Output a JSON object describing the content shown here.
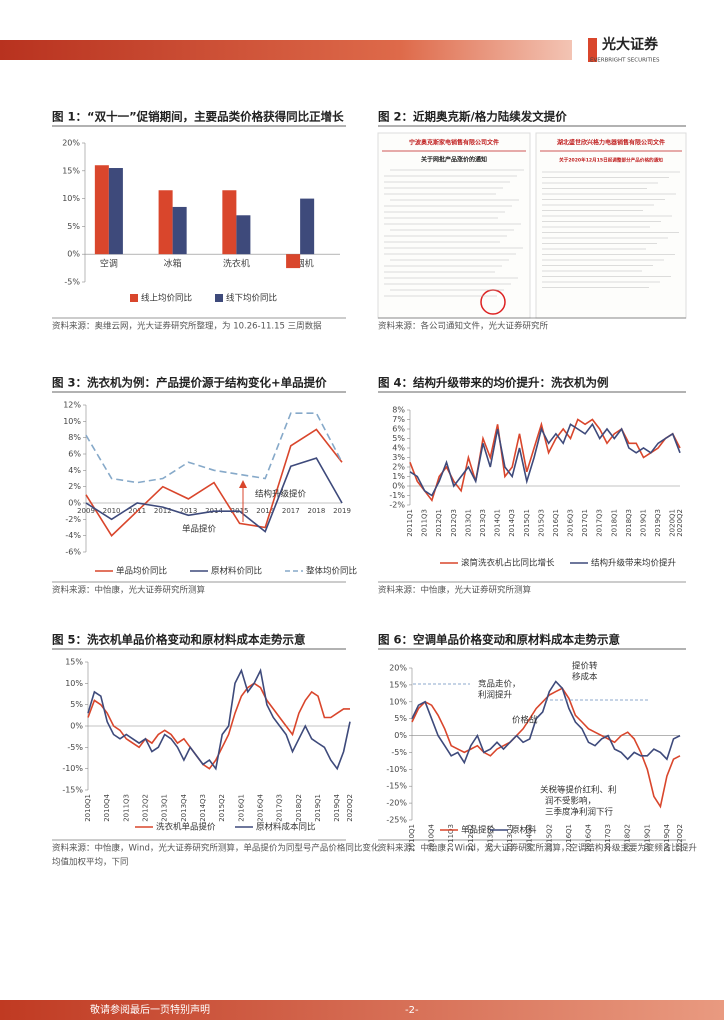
{
  "header": {
    "logo": "光大证券",
    "logo_en": "EVERBRIGHT SECURITIES"
  },
  "figures": [
    {
      "title": "图 1：“双十一”促销期间，主要品类价格获得同比正增长",
      "source": "资料来源：奥维云网，光大证券研究所整理，为 10.26-11.15 三周数据",
      "chart": {
        "type": "bar",
        "categories": [
          "空调",
          "冰箱",
          "洗衣机",
          "油烟机"
        ],
        "series": [
          {
            "name": "线上均价同比",
            "color": "#d9462c",
            "values": [
              16,
              11.5,
              11.5,
              -2.5
            ]
          },
          {
            "name": "线下均价同比",
            "color": "#3e4a7b",
            "values": [
              15.5,
              8.5,
              7,
              10
            ]
          }
        ],
        "ylim": [
          -5,
          20
        ],
        "yticks": [
          {
            "value": -5,
            "label": "-5%"
          },
          {
            "value": 0,
            "label": "0%"
          },
          {
            "value": 5,
            "label": "5%"
          },
          {
            "value": 10,
            "label": "10%"
          },
          {
            "value": 15,
            "label": "15%"
          },
          {
            "value": 20,
            "label": "20%"
          }
        ]
      }
    },
    {
      "title": "图 2：近期奥克斯/格力陆续发文提价",
      "source": "资料来源：各公司通知文件，光大证券研究所",
      "documents": [
        {
          "company": "宁波奥克斯家电销售有限公司文件",
          "heading": "关于网批产品涨价的通知"
        },
        {
          "company": "湖北盛世欣兴格力电器销售有限公司文件",
          "heading": "关于2020年12月15日起调整部分产品价格的通知"
        }
      ]
    },
    {
      "title": "图 3：洗衣机为例：产品提价源于结构变化+单品提价",
      "source": "资料来源：中怡康，光大证券研究所测算",
      "chart": {
        "type": "line",
        "categories": [
          "2009",
          "2010",
          "2011",
          "2012",
          "2013",
          "2014",
          "2015",
          "2016",
          "2017",
          "2018",
          "2019"
        ],
        "series": [
          {
            "name": "单品均价同比",
            "color": "#d9462c",
            "values": [
              1,
              -4,
              -1,
              2,
              0.5,
              2.5,
              -2.5,
              -3,
              7,
              9,
              5
            ]
          },
          {
            "name": "原材料价同比",
            "color": "#3e4a7b",
            "values": [
              0,
              -2,
              0,
              -0.5,
              -1.5,
              -1,
              -1,
              -3.5,
              4.5,
              5.5,
              0
            ]
          },
          {
            "name": "整体均价同比",
            "color": "#86a9c9",
            "line_style": "dashed",
            "values": [
              8.3,
              3,
              2.5,
              3,
              5,
              4,
              3.5,
              3,
              11,
              11,
              5
            ]
          }
        ],
        "ylim": [
          -6,
          12
        ],
        "yticks": [
          {
            "value": -6,
            "label": "-6%"
          },
          {
            "value": -4,
            "label": "-4%"
          },
          {
            "value": -2,
            "label": "-2%"
          },
          {
            "value": 0,
            "label": "0%"
          },
          {
            "value": 2,
            "label": "2%"
          },
          {
            "value": 4,
            "label": "4%"
          },
          {
            "value": 6,
            "label": "6%"
          },
          {
            "value": 8,
            "label": "8%"
          },
          {
            "value": 10,
            "label": "10%"
          },
          {
            "value": 12,
            "label": "12%"
          }
        ],
        "annotations": [
          "结构升级提价",
          "单品提价"
        ]
      }
    },
    {
      "title": "图 4：结构升级带来的均价提升：洗衣机为例",
      "source": "资料来源：中怡康，光大证券研究所测算",
      "chart": {
        "type": "line",
        "categories": [
          "2011Q1",
          null,
          "2011Q3",
          null,
          "2012Q1",
          null,
          "2012Q3",
          null,
          "2013Q1",
          null,
          "2013Q3",
          null,
          "2014Q1",
          null,
          "2014Q3",
          null,
          "2015Q1",
          null,
          "2015Q3",
          null,
          "2016Q1",
          null,
          "2016Q3",
          null,
          "2017Q1",
          null,
          "2017Q3",
          null,
          "2018Q1",
          null,
          "2018Q3",
          null,
          "2019Q1",
          null,
          "2019Q3",
          null,
          "2020Q1",
          "2020Q2"
        ],
        "series": [
          {
            "name": "滚筒洗衣机占比同比增长",
            "color": "#d9462c",
            "values": [
              2.5,
              0.5,
              -0.5,
              -1.5,
              1,
              2,
              0.5,
              -0.5,
              3,
              0.5,
              5,
              3,
              6.5,
              1,
              2,
              5.5,
              1.5,
              4,
              6.5,
              3.5,
              5,
              6,
              5,
              7,
              6.5,
              7,
              6,
              4.5,
              5.5,
              6,
              4.5,
              4.5,
              3,
              3.5,
              4,
              5,
              5.5,
              4
            ]
          },
          {
            "name": "结构升级带来均价提升",
            "color": "#3e4a7b",
            "values": [
              1.5,
              1,
              -0.5,
              -1,
              0.5,
              2.5,
              0,
              1,
              2,
              0.5,
              4.5,
              2,
              6,
              2,
              1,
              4,
              0.5,
              3,
              6,
              4.5,
              5.5,
              4.5,
              6.5,
              6,
              5.5,
              6.5,
              5,
              6,
              5,
              6,
              4,
              3.5,
              4,
              3.5,
              4.5,
              5,
              5.5,
              3.5
            ]
          }
        ],
        "ylim": [
          -2,
          8
        ],
        "yticks": [
          {
            "value": -2,
            "label": "-2%"
          },
          {
            "value": -1,
            "label": "-1%"
          },
          {
            "value": 0,
            "label": "0%"
          },
          {
            "value": 1,
            "label": "1%"
          },
          {
            "value": 2,
            "label": "2%"
          },
          {
            "value": 3,
            "label": "3%"
          },
          {
            "value": 4,
            "label": "4%"
          },
          {
            "value": 5,
            "label": "5%"
          },
          {
            "value": 6,
            "label": "6%"
          },
          {
            "value": 7,
            "label": "7%"
          },
          {
            "value": 8,
            "label": "8%"
          }
        ]
      }
    },
    {
      "title": "图 5：洗衣机单品价格变动和原材料成本走势示意",
      "source": "资料来源：中怡康，Wind，光大证券研究所测算，单品提价为同型号产品价格同比变化",
      "source2": "均值加权平均，下同",
      "chart": {
        "type": "line",
        "categories": [
          "2010Q1",
          null,
          null,
          "2010Q4",
          null,
          null,
          "2011Q3",
          null,
          null,
          "2012Q2",
          null,
          null,
          "2013Q1",
          null,
          null,
          "2013Q4",
          null,
          null,
          "2014Q3",
          null,
          null,
          "2015Q2",
          null,
          null,
          "2016Q1",
          null,
          null,
          "2016Q4",
          null,
          null,
          "2017Q3",
          null,
          null,
          "2018Q2",
          null,
          null,
          "2019Q1",
          null,
          null,
          "2019Q4",
          null,
          "2020Q2"
        ],
        "series": [
          {
            "name": "洗衣机单品提价",
            "color": "#d9462c",
            "values": [
              2,
              6,
              5,
              3,
              0,
              -1,
              -3,
              -4,
              -5,
              -3,
              -4,
              -2,
              -1,
              -2,
              -4,
              -3,
              -5,
              -7,
              -9,
              -10,
              -8,
              -5,
              -2,
              3,
              7,
              9,
              10,
              9,
              6,
              4,
              2,
              0,
              -2,
              3,
              6,
              8,
              7,
              2,
              2,
              3,
              4,
              4
            ]
          },
          {
            "name": "原材料成本同比",
            "color": "#3e4a7b",
            "values": [
              3,
              8,
              7,
              1,
              -2,
              -3,
              -2,
              -3,
              -4,
              -3,
              -6,
              -5,
              -2,
              -3,
              -5,
              -8,
              -5,
              -7,
              -9,
              -8,
              -10,
              -2,
              0,
              10,
              13,
              8,
              10,
              13,
              5,
              2,
              0,
              -2,
              -6,
              -3,
              0,
              -3,
              -4,
              -5,
              -8,
              -10,
              -6,
              1
            ]
          }
        ],
        "ylim": [
          -15,
          15
        ],
        "yticks": [
          {
            "value": -15,
            "label": "-15%"
          },
          {
            "value": -10,
            "label": "-10%"
          },
          {
            "value": -5,
            "label": "-5%"
          },
          {
            "value": 0,
            "label": "0%"
          },
          {
            "value": 5,
            "label": "5%"
          },
          {
            "value": 10,
            "label": "10%"
          },
          {
            "value": 15,
            "label": "15%"
          }
        ]
      }
    },
    {
      "title": "图 6：空调单品价格变动和原材料成本走势示意",
      "source": "资料来源：中怡康，Wind，光大证券研究所测算，空调结构升级主要为变频占比提升",
      "chart": {
        "type": "line",
        "categories": [
          "2010Q1",
          null,
          null,
          "2010Q4",
          null,
          null,
          "2011Q3",
          null,
          null,
          "2012Q2",
          null,
          null,
          "2013Q1",
          null,
          null,
          "2013Q4",
          null,
          null,
          "2014Q3",
          null,
          null,
          "2015Q2",
          null,
          null,
          "2016Q1",
          null,
          null,
          "2016Q4",
          null,
          null,
          "2017Q3",
          null,
          null,
          "2018Q2",
          null,
          null,
          "2019Q1",
          null,
          null,
          "2019Q4",
          null,
          "2020Q2"
        ],
        "series": [
          {
            "name": "单品提价",
            "color": "#d9462c",
            "values": [
              4,
              8,
              10,
              9,
              6,
              2,
              -3,
              -4,
              -5,
              -4,
              -3,
              -5,
              -6,
              -4,
              -3,
              -2,
              0,
              2,
              5,
              8,
              10,
              12,
              13,
              14,
              11,
              6,
              4,
              2,
              1,
              0,
              -1,
              -2,
              0,
              1,
              -1,
              -5,
              -10,
              -18,
              -21,
              -12,
              -7,
              -6
            ]
          },
          {
            "name": "原材料",
            "color": "#3e4a7b",
            "values": [
              5,
              9,
              10,
              5,
              0,
              -3,
              -6,
              -5,
              -8,
              -3,
              0,
              -5,
              -4,
              -2,
              -4,
              -2,
              0,
              -2,
              -1,
              5,
              7,
              13,
              16,
              14,
              8,
              4,
              2,
              -2,
              -3,
              -1,
              0,
              -4,
              -5,
              -7,
              -5,
              -6,
              -6,
              -4,
              -5,
              -7,
              -1,
              0
            ]
          }
        ],
        "ylim": [
          -25,
          20
        ],
        "yticks": [
          {
            "value": -25,
            "label": "-25%"
          },
          {
            "value": -20,
            "label": "-20%"
          },
          {
            "value": -15,
            "label": "-15%"
          },
          {
            "value": -10,
            "label": "-10%"
          },
          {
            "value": -5,
            "label": "-5%"
          },
          {
            "value": 0,
            "label": "0%"
          },
          {
            "value": 5,
            "label": "5%"
          },
          {
            "value": 10,
            "label": "10%"
          },
          {
            "value": 15,
            "label": "15%"
          },
          {
            "value": 20,
            "label": "20%"
          }
        ],
        "annotations": [
          "竞品走价，",
          "利润提升",
          "提价转",
          "移成本",
          "价格战",
          "关税等提价红利、利",
          "润不受影响，",
          "三季度净利润下行"
        ]
      }
    }
  ],
  "footer": {
    "note": "敬请参阅最后一页特别声明",
    "page": "-2-"
  }
}
